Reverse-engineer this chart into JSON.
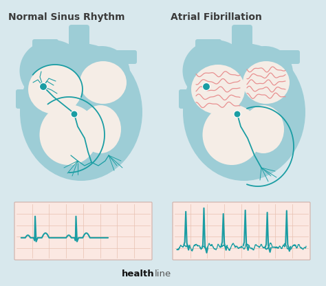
{
  "bg_color": "#d8e8ed",
  "title_left": "Normal Sinus Rhythm",
  "title_right": "Atrial Fibrillation",
  "title_color": "#3a3a3a",
  "title_fontsize": 10,
  "title_fontweight": "bold",
  "heart_outer": "#9dcdd6",
  "heart_inner": "#f5ede6",
  "ecg_bg": "#fbe8e2",
  "ecg_line_color": "#1a9da3",
  "ecg_grid_color": "#e8c0b0",
  "dot_color": "#1a9da3",
  "fibril_color": "#e89090",
  "healthline_color": "#222222"
}
